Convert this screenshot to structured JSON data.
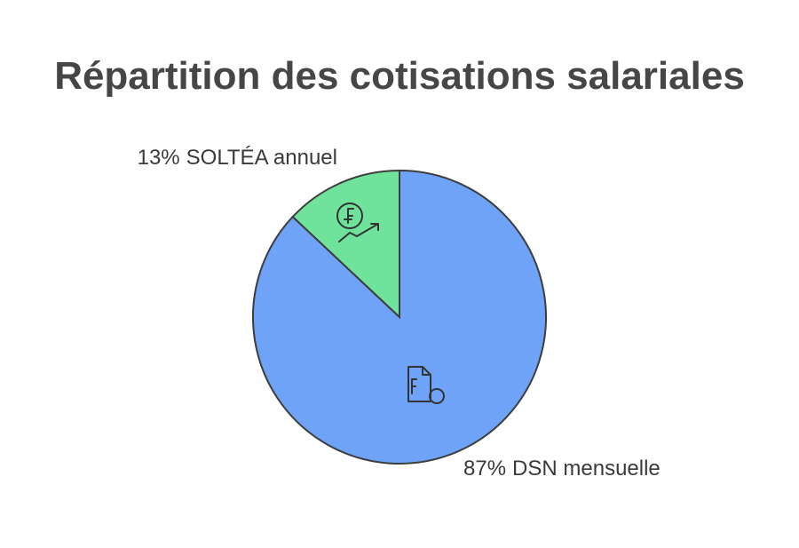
{
  "chart_data": {
    "type": "pie",
    "title": "Répartition des cotisations salariales",
    "categories": [
      "DSN mensuelle",
      "SOLTÉA annuel"
    ],
    "values": [
      87,
      13
    ],
    "value_labels": [
      "87%",
      "13%"
    ],
    "colors": [
      "#6fa3f7",
      "#6fe39c"
    ]
  }
}
